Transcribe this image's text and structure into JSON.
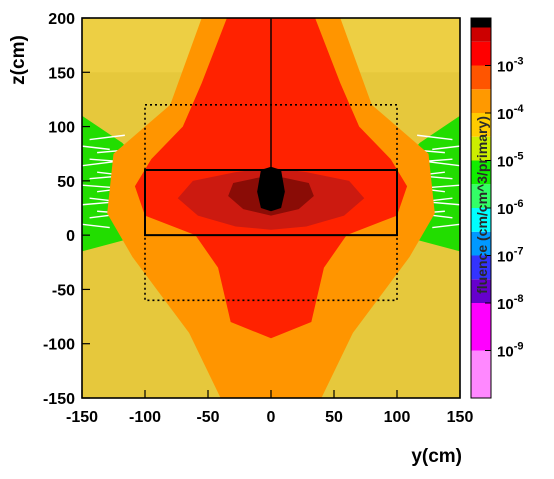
{
  "chart_data": {
    "type": "heatmap",
    "xlabel": "y(cm)",
    "ylabel": "z(cm)",
    "xlim": [
      -150,
      150
    ],
    "ylim": [
      -150,
      200
    ],
    "xticks": [
      -150,
      -100,
      -50,
      0,
      50,
      100,
      150
    ],
    "yticks": [
      -150,
      -100,
      -50,
      0,
      50,
      100,
      150,
      200
    ],
    "grid": false,
    "colorbar": {
      "title": "fluence (cm/cm^3/primary)",
      "scale": "log",
      "range": [
        1e-10,
        0.01
      ],
      "ticks": [
        {
          "value": 1e-09,
          "label": "10-9"
        },
        {
          "value": 1e-08,
          "label": "10-8"
        },
        {
          "value": 1e-07,
          "label": "10-7"
        },
        {
          "value": 1e-06,
          "label": "10-6"
        },
        {
          "value": 1e-05,
          "label": "10-5"
        },
        {
          "value": 0.0001,
          "label": "10-4"
        },
        {
          "value": 0.001,
          "label": "10-3"
        }
      ],
      "bands": [
        {
          "from": -10.0,
          "to": -9.0,
          "color": "#ff88ff"
        },
        {
          "from": -9.0,
          "to": -8.0,
          "color": "#ff00ff"
        },
        {
          "from": -8.0,
          "to": -7.5,
          "color": "#6600cc"
        },
        {
          "from": -7.5,
          "to": -7.0,
          "color": "#3333ff"
        },
        {
          "from": -7.0,
          "to": -6.5,
          "color": "#0099ff"
        },
        {
          "from": -6.5,
          "to": -6.0,
          "color": "#00ffff"
        },
        {
          "from": -6.0,
          "to": -5.5,
          "color": "#33ff66"
        },
        {
          "from": -5.5,
          "to": -5.0,
          "color": "#11ee00"
        },
        {
          "from": -5.0,
          "to": -4.5,
          "color": "#ccee00"
        },
        {
          "from": -4.5,
          "to": -4.0,
          "color": "#ffcc00"
        },
        {
          "from": -4.0,
          "to": -3.5,
          "color": "#ff9900"
        },
        {
          "from": -3.5,
          "to": -3.0,
          "color": "#ff5500"
        },
        {
          "from": -3.0,
          "to": -2.5,
          "color": "#ff0000"
        },
        {
          "from": -2.5,
          "to": -2.2,
          "color": "#cc0000"
        },
        {
          "from": -2.2,
          "to": -2.0,
          "color": "#000000"
        }
      ]
    },
    "regions": [
      {
        "name": "ambient",
        "level": "1e-4.7",
        "color": "#e6c83c"
      },
      {
        "name": "lateral-wings",
        "y_range": [
          [
            -150,
            -100
          ],
          [
            100,
            150
          ]
        ],
        "z_range": [
          -10,
          100
        ],
        "color": "#22dd00"
      },
      {
        "name": "cone",
        "color": "#ff9500"
      },
      {
        "name": "high-cone",
        "color": "#ff2200"
      },
      {
        "name": "core",
        "color": "#cc1a10"
      },
      {
        "name": "inner-core",
        "color": "#8a0c06"
      },
      {
        "name": "source",
        "color": "#000000"
      }
    ],
    "overlays": [
      {
        "kind": "solid-rect",
        "y": [
          -100,
          100
        ],
        "z": [
          0,
          60
        ]
      },
      {
        "kind": "dotted-rect",
        "y": [
          -100,
          100
        ],
        "z": [
          -60,
          120
        ]
      },
      {
        "kind": "vertical-line",
        "y": 0,
        "z": [
          40,
          200
        ]
      }
    ]
  }
}
